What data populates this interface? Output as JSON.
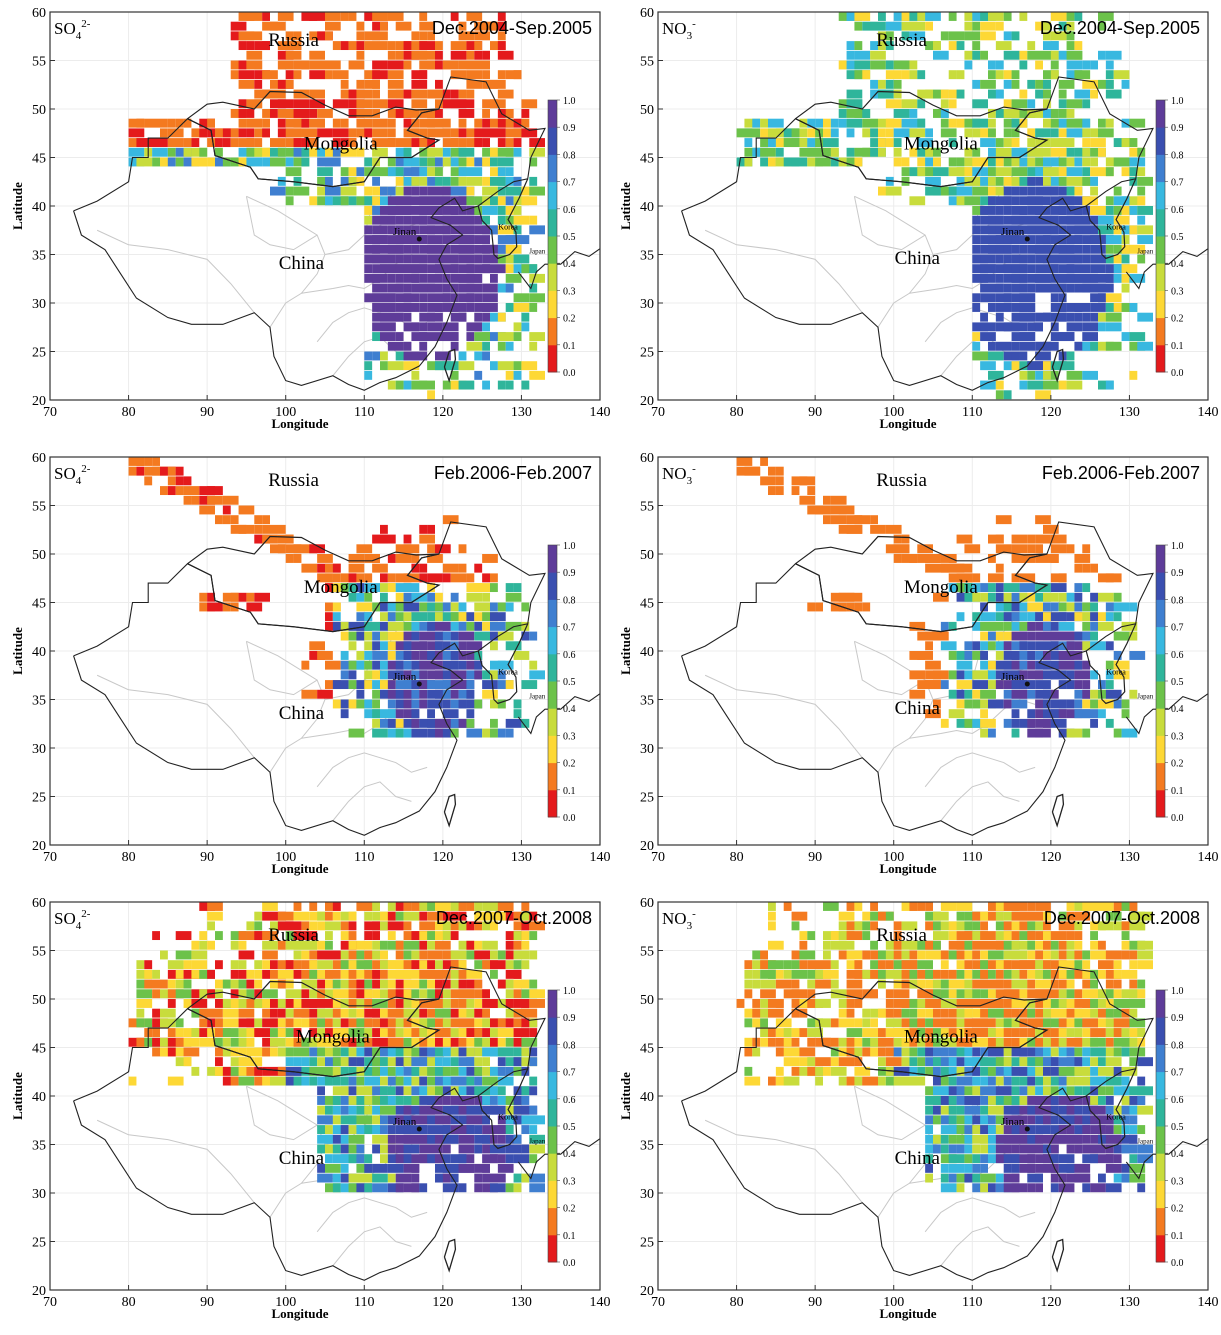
{
  "colorbar": {
    "ticks": [
      "1.0",
      "0.9",
      "0.8",
      "0.7",
      "0.6",
      "0.5",
      "0.4",
      "0.3",
      "0.2",
      "0.1",
      "0.0"
    ],
    "colors": [
      "#e41a1c",
      "#f47a20",
      "#fdd835",
      "#c8dc3c",
      "#6cc24a",
      "#2fb59b",
      "#38b8e0",
      "#3f7fd0",
      "#3a4fb0",
      "#5e3c99"
    ]
  },
  "axes": {
    "x_label": "Longitude",
    "y_label": "Latitude",
    "x_ticks": [
      "70",
      "80",
      "90",
      "100",
      "110",
      "120",
      "130",
      "140"
    ],
    "y_ticks": [
      "60",
      "55",
      "50",
      "45",
      "40",
      "35",
      "30",
      "25",
      "20"
    ]
  },
  "map_labels": {
    "russia": "Russia",
    "mongolia": "Mongolia",
    "china": "China",
    "jinan": "Jinan",
    "korea": "Korea",
    "japan": "Japan"
  },
  "panels": [
    {
      "species_base": "SO",
      "species_sub": "4",
      "species_sup": "2-",
      "period": "Dec.2004-Sep.2005"
    },
    {
      "species_base": "NO",
      "species_sub": "3",
      "species_sup": "-",
      "period": "Dec.2004-Sep.2005"
    },
    {
      "species_base": "SO",
      "species_sub": "4",
      "species_sup": "2-",
      "period": "Feb.2006-Feb.2007"
    },
    {
      "species_base": "NO",
      "species_sub": "3",
      "species_sup": "-",
      "period": "Feb.2006-Feb.2007"
    },
    {
      "species_base": "SO",
      "species_sub": "4",
      "species_sup": "2-",
      "period": "Dec.2007-Oct.2008"
    },
    {
      "species_base": "NO",
      "species_sub": "3",
      "species_sup": "-",
      "period": "Dec.2007-Oct.2008"
    }
  ]
}
